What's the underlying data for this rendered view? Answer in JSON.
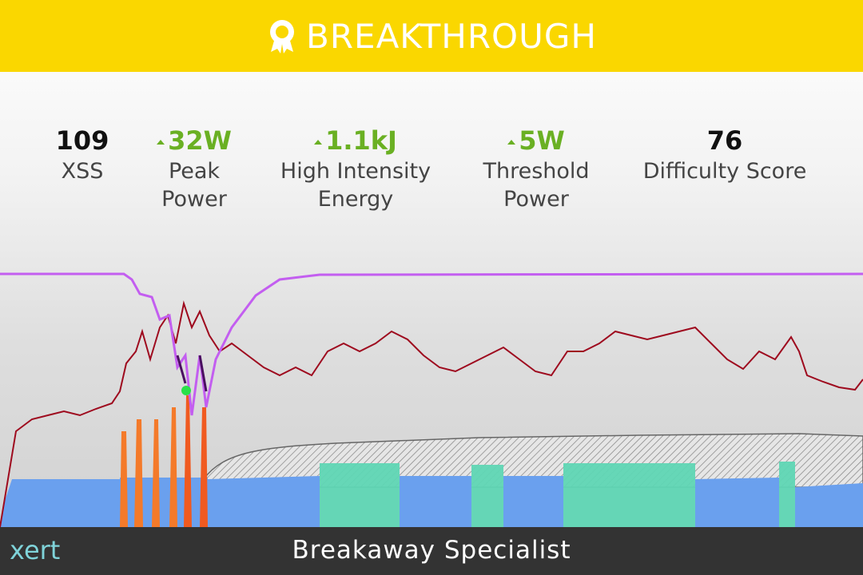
{
  "header": {
    "title": "BREAKTHROUGH"
  },
  "stats": [
    {
      "value": "109",
      "label": "XSS"
    },
    {
      "value": "32W",
      "label": "Peak Power"
    },
    {
      "value": "1.1kJ",
      "label": "High Intensity Energy"
    },
    {
      "value": "5W",
      "label": "Threshold Power"
    },
    {
      "value": "76",
      "label": "Difficulty Score"
    }
  ],
  "footer": {
    "logo": "xert",
    "title": "Breakaway Specialist"
  }
}
